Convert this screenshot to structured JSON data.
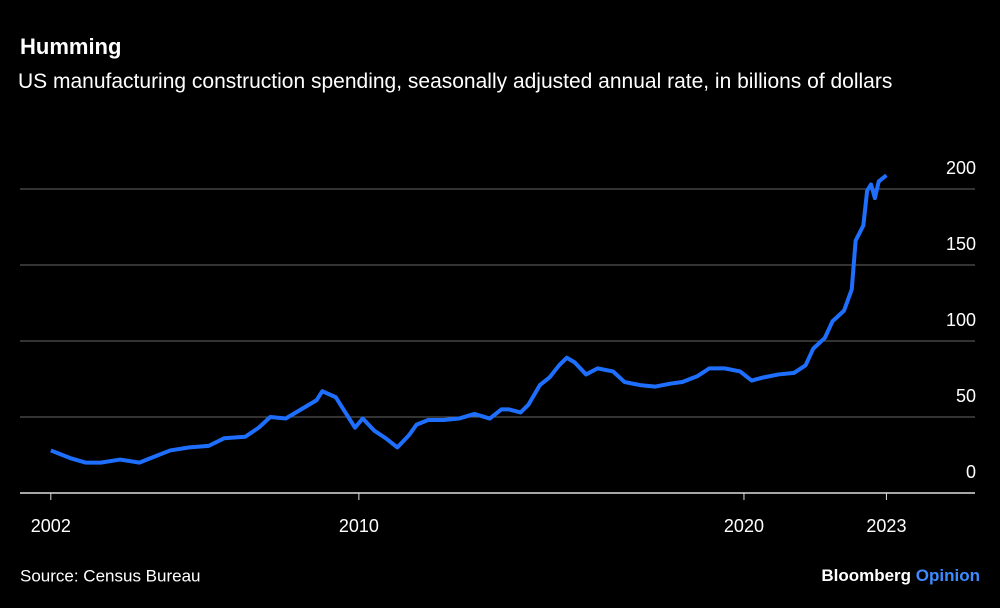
{
  "chart_data": {
    "type": "line",
    "title": "Humming",
    "subtitle": "US manufacturing construction spending, seasonally adjusted annual rate, in billions of dollars",
    "source": "Source: Census Bureau",
    "brand": {
      "name": "Bloomberg",
      "section": "Opinion"
    },
    "x": [
      2002.0,
      2002.5,
      2002.9,
      2003.3,
      2003.8,
      2004.3,
      2004.7,
      2005.1,
      2005.6,
      2006.1,
      2006.5,
      2007.05,
      2007.4,
      2007.7,
      2008.1,
      2008.5,
      2008.9,
      2009.05,
      2009.4,
      2009.6,
      2009.9,
      2010.1,
      2010.4,
      2010.7,
      2011.0,
      2011.3,
      2011.5,
      2011.8,
      2012.2,
      2012.6,
      2013.0,
      2013.4,
      2013.7,
      2013.9,
      2014.2,
      2014.4,
      2014.7,
      2014.95,
      2015.2,
      2015.4,
      2015.6,
      2015.9,
      2016.2,
      2016.6,
      2016.9,
      2017.3,
      2017.7,
      2018.1,
      2018.4,
      2018.8,
      2019.1,
      2019.5,
      2019.9,
      2020.2,
      2020.5,
      2020.9,
      2021.3,
      2021.6,
      2021.8,
      2022.1,
      2022.3,
      2022.6,
      2022.8,
      2022.9,
      2023.1,
      2023.2,
      2023.3,
      2023.4,
      2023.5,
      2023.7
    ],
    "series": [
      {
        "name": "Manufacturing construction spending",
        "color": "#1f6fff",
        "values": [
          28,
          23,
          20,
          20,
          22,
          20,
          24,
          28,
          30,
          31,
          36,
          37,
          43,
          50,
          49,
          55,
          61,
          67,
          63,
          55,
          43,
          49,
          41,
          36,
          30,
          38,
          45,
          48,
          48,
          49,
          52,
          49,
          55,
          55,
          53,
          58,
          71,
          76,
          84,
          89,
          86,
          78,
          82,
          80,
          73,
          71,
          70,
          72,
          73,
          77,
          82,
          82,
          80,
          74,
          76,
          78,
          79,
          84,
          95,
          102,
          113,
          120,
          134,
          166,
          176,
          199,
          203,
          194,
          205,
          209
        ]
      }
    ],
    "xlim": [
      2001.2,
      2026
    ],
    "xticks": [
      2002,
      2010,
      2020,
      {
        "value": 2023.7,
        "label": "2023"
      }
    ],
    "ylim": [
      0,
      200
    ],
    "yticks": [
      0,
      50,
      100,
      150,
      200
    ],
    "grid": true
  }
}
